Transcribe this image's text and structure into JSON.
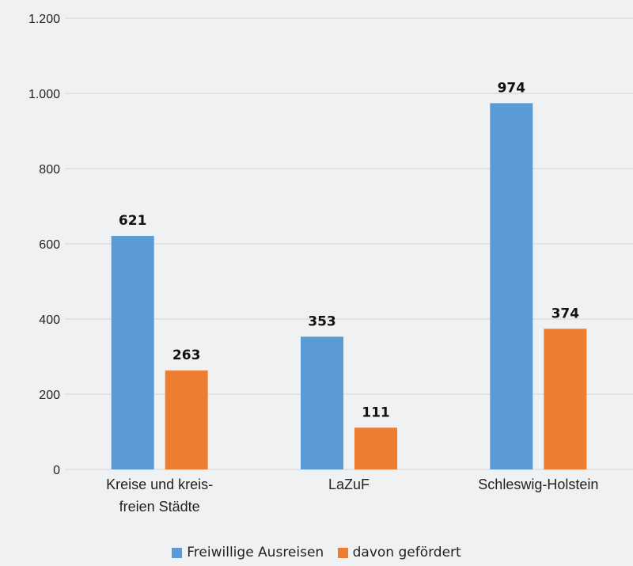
{
  "chart_data": {
    "type": "bar",
    "categories": [
      [
        "Kreise und kreis-",
        "freien Städte"
      ],
      [
        "LaZuF"
      ],
      [
        "Schleswig-Holstein"
      ]
    ],
    "series": [
      {
        "name": "Freiwillige Ausreisen",
        "values": [
          621,
          353,
          974
        ],
        "labels": [
          "621",
          "353",
          "974"
        ],
        "color": "#5b9bd5"
      },
      {
        "name": "davon gefördert",
        "values": [
          263,
          111,
          374
        ],
        "labels": [
          "263",
          "111",
          "374"
        ],
        "color": "#ed7d31"
      }
    ],
    "ylim": [
      0,
      1200
    ],
    "yticks": [
      0,
      200,
      400,
      600,
      800,
      1000,
      1200
    ],
    "ytick_labels": [
      "0",
      "200",
      "400",
      "600",
      "800",
      "1.000",
      "1.200"
    ],
    "grid": true,
    "legend_position": "bottom",
    "title": "",
    "xlabel": "",
    "ylabel": ""
  }
}
